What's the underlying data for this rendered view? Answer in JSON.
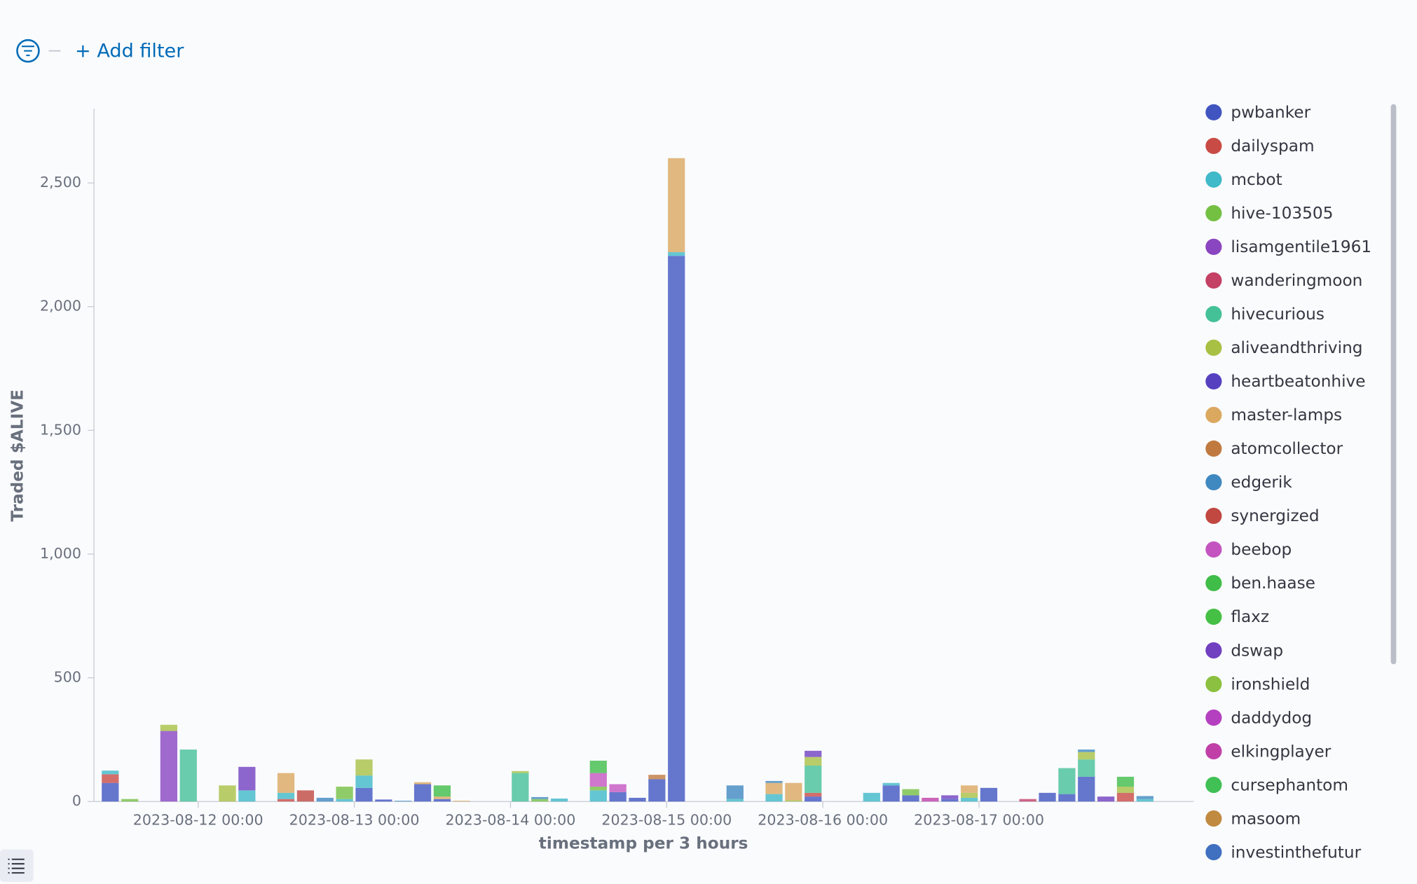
{
  "filter_bar": {
    "add_filter": "+ Add filter"
  },
  "chart_data": {
    "type": "stacked_bar",
    "y_label": "Traded $ALIVE",
    "x_label": "timestamp per 3 hours",
    "x": [
      "2023-08-11 09:00",
      "2023-08-11 12:00",
      "2023-08-11 18:00",
      "2023-08-11 21:00",
      "2023-08-12 03:00",
      "2023-08-12 06:00",
      "2023-08-12 12:00",
      "2023-08-12 15:00",
      "2023-08-12 18:00",
      "2023-08-12 21:00",
      "2023-08-13 00:00",
      "2023-08-13 03:00",
      "2023-08-13 06:00",
      "2023-08-13 09:00",
      "2023-08-13 12:00",
      "2023-08-13 15:00",
      "2023-08-14 00:00",
      "2023-08-14 03:00",
      "2023-08-14 06:00",
      "2023-08-14 12:00",
      "2023-08-14 15:00",
      "2023-08-14 18:00",
      "2023-08-14 21:00",
      "2023-08-15 00:00",
      "2023-08-15 09:00",
      "2023-08-15 15:00",
      "2023-08-15 18:00",
      "2023-08-15 21:00",
      "2023-08-16 06:00",
      "2023-08-16 09:00",
      "2023-08-16 12:00",
      "2023-08-16 15:00",
      "2023-08-16 18:00",
      "2023-08-16 21:00",
      "2023-08-17 00:00",
      "2023-08-17 06:00",
      "2023-08-17 09:00",
      "2023-08-17 12:00",
      "2023-08-17 15:00",
      "2023-08-17 18:00",
      "2023-08-17 21:00",
      "2023-08-18 00:00"
    ],
    "xlim": [
      "2023-08-11 08:00",
      "2023-08-18 09:00"
    ],
    "xticks": [
      "2023-08-12 00:00",
      "2023-08-13 00:00",
      "2023-08-14 00:00",
      "2023-08-15 00:00",
      "2023-08-16 00:00",
      "2023-08-17 00:00"
    ],
    "ylim": [
      0,
      2800
    ],
    "yticks": [
      0,
      500,
      {
        "value": 1000,
        "label": "1,000"
      },
      {
        "value": 1500,
        "label": "1,500"
      },
      {
        "value": 2000,
        "label": "2,000"
      },
      {
        "value": 2500,
        "label": "2,500"
      }
    ],
    "grid": false,
    "legend": "right",
    "series": [
      {
        "name": "pwbanker",
        "color": "#4055c0",
        "values": [
          75,
          0,
          0,
          0,
          0,
          0,
          0,
          0,
          0,
          0,
          55,
          8,
          0,
          70,
          10,
          0,
          0,
          0,
          0,
          0,
          38,
          15,
          90,
          2205,
          0,
          0,
          0,
          20,
          0,
          65,
          25,
          0,
          10,
          0,
          55,
          0,
          35,
          30,
          100,
          0,
          0,
          0
        ]
      },
      {
        "name": "dailyspam",
        "color": "#c94b45",
        "values": [
          35,
          0,
          0,
          0,
          0,
          0,
          10,
          0,
          0,
          0,
          0,
          0,
          0,
          0,
          0,
          0,
          0,
          0,
          0,
          0,
          0,
          0,
          0,
          0,
          0,
          0,
          0,
          15,
          0,
          0,
          0,
          0,
          0,
          0,
          0,
          0,
          0,
          0,
          0,
          0,
          35,
          0
        ]
      },
      {
        "name": "mcbot",
        "color": "#40b9c8",
        "values": [
          15,
          0,
          0,
          0,
          0,
          45,
          25,
          0,
          0,
          10,
          50,
          0,
          0,
          0,
          0,
          0,
          0,
          0,
          12,
          45,
          0,
          0,
          0,
          15,
          10,
          30,
          0,
          0,
          35,
          10,
          0,
          0,
          0,
          15,
          0,
          0,
          0,
          0,
          0,
          0,
          0,
          10
        ]
      },
      {
        "name": "hive-103505",
        "color": "#74c043",
        "values": [
          0,
          10,
          0,
          0,
          0,
          0,
          0,
          0,
          0,
          50,
          0,
          0,
          0,
          0,
          0,
          0,
          0,
          10,
          0,
          15,
          0,
          0,
          0,
          0,
          0,
          0,
          0,
          0,
          0,
          0,
          25,
          0,
          0,
          0,
          0,
          0,
          0,
          0,
          0,
          0,
          0,
          0
        ]
      },
      {
        "name": "lisamgentile1961",
        "color": "#8a45c0",
        "values": [
          0,
          0,
          285,
          0,
          0,
          0,
          0,
          0,
          0,
          0,
          0,
          0,
          0,
          0,
          0,
          0,
          0,
          0,
          0,
          0,
          0,
          0,
          0,
          0,
          0,
          0,
          0,
          0,
          0,
          0,
          0,
          0,
          0,
          0,
          0,
          0,
          0,
          0,
          0,
          0,
          0,
          0
        ]
      },
      {
        "name": "wanderingmoon",
        "color": "#c44065",
        "values": [
          0,
          0,
          0,
          0,
          0,
          0,
          0,
          0,
          0,
          0,
          0,
          0,
          0,
          0,
          0,
          0,
          0,
          0,
          0,
          0,
          0,
          0,
          0,
          0,
          0,
          0,
          0,
          0,
          0,
          0,
          0,
          0,
          0,
          0,
          0,
          10,
          0,
          0,
          0,
          0,
          0,
          0
        ]
      },
      {
        "name": "hivecurious",
        "color": "#45c197",
        "values": [
          0,
          0,
          0,
          210,
          0,
          0,
          0,
          0,
          0,
          0,
          0,
          0,
          0,
          0,
          0,
          0,
          115,
          0,
          0,
          0,
          0,
          0,
          0,
          0,
          0,
          0,
          0,
          110,
          0,
          0,
          0,
          0,
          0,
          0,
          0,
          0,
          0,
          105,
          70,
          0,
          0,
          0
        ]
      },
      {
        "name": "aliveandthriving",
        "color": "#a8c043",
        "values": [
          0,
          0,
          25,
          0,
          65,
          0,
          0,
          0,
          0,
          0,
          65,
          0,
          0,
          0,
          0,
          0,
          8,
          0,
          0,
          0,
          0,
          0,
          0,
          0,
          0,
          0,
          5,
          35,
          0,
          0,
          0,
          0,
          0,
          20,
          0,
          0,
          0,
          0,
          30,
          0,
          25,
          0
        ]
      },
      {
        "name": "heartbeatonhive",
        "color": "#5640c0",
        "values": [
          0,
          0,
          0,
          0,
          0,
          0,
          0,
          0,
          0,
          0,
          0,
          0,
          0,
          0,
          0,
          0,
          0,
          0,
          0,
          0,
          0,
          0,
          0,
          0,
          0,
          0,
          0,
          0,
          0,
          0,
          0,
          0,
          0,
          0,
          0,
          0,
          0,
          0,
          0,
          0,
          0,
          0
        ]
      },
      {
        "name": "master-lamps",
        "color": "#dba860",
        "values": [
          0,
          0,
          0,
          0,
          0,
          0,
          80,
          0,
          0,
          0,
          0,
          0,
          0,
          8,
          10,
          3,
          0,
          0,
          0,
          0,
          0,
          0,
          0,
          380,
          0,
          45,
          70,
          0,
          0,
          0,
          0,
          0,
          0,
          30,
          0,
          0,
          0,
          0,
          0,
          0,
          0,
          0
        ]
      },
      {
        "name": "atomcollector",
        "color": "#c07a40",
        "values": [
          0,
          0,
          0,
          0,
          0,
          0,
          0,
          0,
          0,
          0,
          0,
          0,
          0,
          0,
          0,
          0,
          0,
          0,
          0,
          0,
          0,
          0,
          18,
          0,
          0,
          0,
          0,
          0,
          0,
          0,
          0,
          0,
          0,
          0,
          0,
          0,
          0,
          0,
          0,
          0,
          0,
          0
        ]
      },
      {
        "name": "edgerik",
        "color": "#4088c0",
        "values": [
          0,
          0,
          0,
          0,
          0,
          0,
          0,
          0,
          15,
          0,
          0,
          0,
          3,
          0,
          0,
          0,
          0,
          8,
          0,
          0,
          0,
          0,
          0,
          0,
          55,
          8,
          0,
          0,
          0,
          0,
          0,
          0,
          0,
          0,
          0,
          0,
          0,
          0,
          10,
          0,
          0,
          12
        ]
      },
      {
        "name": "synergized",
        "color": "#c04840",
        "values": [
          0,
          0,
          0,
          0,
          0,
          0,
          0,
          45,
          0,
          0,
          0,
          0,
          0,
          0,
          0,
          0,
          0,
          0,
          0,
          0,
          0,
          0,
          0,
          0,
          0,
          0,
          0,
          0,
          0,
          0,
          0,
          0,
          0,
          0,
          0,
          0,
          0,
          0,
          0,
          0,
          0,
          0
        ]
      },
      {
        "name": "beebop",
        "color": "#c455c0",
        "values": [
          0,
          0,
          0,
          0,
          0,
          0,
          0,
          0,
          0,
          0,
          0,
          0,
          0,
          0,
          0,
          0,
          0,
          0,
          0,
          55,
          32,
          0,
          0,
          0,
          0,
          0,
          0,
          0,
          0,
          0,
          0,
          0,
          0,
          0,
          0,
          0,
          0,
          0,
          0,
          0,
          0,
          0
        ]
      },
      {
        "name": "ben.haase",
        "color": "#40bd48",
        "values": [
          0,
          0,
          0,
          0,
          0,
          0,
          0,
          0,
          0,
          0,
          0,
          0,
          0,
          0,
          45,
          0,
          0,
          0,
          0,
          50,
          0,
          0,
          0,
          0,
          0,
          0,
          0,
          0,
          0,
          0,
          0,
          0,
          0,
          0,
          0,
          0,
          0,
          0,
          0,
          0,
          40,
          0
        ]
      },
      {
        "name": "flaxz",
        "color": "#45c045",
        "values": [
          0,
          0,
          0,
          0,
          0,
          0,
          0,
          0,
          0,
          0,
          0,
          0,
          0,
          0,
          0,
          0,
          0,
          0,
          0,
          0,
          0,
          0,
          0,
          0,
          0,
          0,
          0,
          0,
          0,
          0,
          0,
          0,
          0,
          0,
          0,
          0,
          0,
          0,
          0,
          0,
          0,
          0
        ]
      },
      {
        "name": "dswap",
        "color": "#7040c0",
        "values": [
          0,
          0,
          0,
          0,
          0,
          95,
          0,
          0,
          0,
          0,
          0,
          0,
          0,
          0,
          0,
          0,
          0,
          0,
          0,
          0,
          0,
          0,
          0,
          0,
          0,
          0,
          0,
          25,
          0,
          0,
          0,
          0,
          15,
          0,
          0,
          0,
          0,
          0,
          0,
          20,
          0,
          0
        ]
      },
      {
        "name": "ironshield",
        "color": "#8cc040",
        "values": [
          0,
          0,
          0,
          0,
          0,
          0,
          0,
          0,
          0,
          0,
          0,
          0,
          0,
          0,
          0,
          0,
          0,
          0,
          0,
          0,
          0,
          0,
          0,
          0,
          0,
          0,
          0,
          0,
          0,
          0,
          0,
          0,
          0,
          0,
          0,
          0,
          0,
          0,
          0,
          0,
          0,
          0
        ]
      },
      {
        "name": "daddydog",
        "color": "#b440c0",
        "values": [
          0,
          0,
          0,
          0,
          0,
          0,
          0,
          0,
          0,
          0,
          0,
          0,
          0,
          0,
          0,
          0,
          0,
          0,
          0,
          0,
          0,
          0,
          0,
          0,
          0,
          0,
          0,
          0,
          0,
          0,
          0,
          0,
          0,
          0,
          0,
          0,
          0,
          0,
          0,
          0,
          0,
          0
        ]
      },
      {
        "name": "elkingplayer",
        "color": "#c040a8",
        "values": [
          0,
          0,
          0,
          0,
          0,
          0,
          0,
          0,
          0,
          0,
          0,
          0,
          0,
          0,
          0,
          0,
          0,
          0,
          0,
          0,
          0,
          0,
          0,
          0,
          0,
          0,
          0,
          0,
          0,
          0,
          0,
          15,
          0,
          0,
          0,
          0,
          0,
          0,
          0,
          0,
          0,
          0
        ]
      },
      {
        "name": "cursephantom",
        "color": "#40c055",
        "values": [
          0,
          0,
          0,
          0,
          0,
          0,
          0,
          0,
          0,
          0,
          0,
          0,
          0,
          0,
          0,
          0,
          0,
          0,
          0,
          0,
          0,
          0,
          0,
          0,
          0,
          0,
          0,
          0,
          0,
          0,
          0,
          0,
          0,
          0,
          0,
          0,
          0,
          0,
          0,
          0,
          0,
          0
        ]
      },
      {
        "name": "masoom",
        "color": "#c08a40",
        "values": [
          0,
          0,
          0,
          0,
          0,
          0,
          0,
          0,
          0,
          0,
          0,
          0,
          0,
          0,
          0,
          0,
          0,
          0,
          0,
          0,
          0,
          0,
          0,
          0,
          0,
          0,
          0,
          0,
          0,
          0,
          0,
          0,
          0,
          0,
          0,
          0,
          0,
          0,
          0,
          0,
          0,
          0
        ]
      },
      {
        "name": "investinthefutur",
        "color": "#4070c0",
        "values": [
          0,
          0,
          0,
          0,
          0,
          0,
          0,
          0,
          0,
          0,
          0,
          0,
          0,
          0,
          0,
          0,
          0,
          0,
          0,
          0,
          0,
          0,
          0,
          0,
          0,
          0,
          0,
          0,
          0,
          0,
          0,
          0,
          0,
          0,
          0,
          0,
          0,
          0,
          0,
          0,
          0,
          0
        ]
      }
    ]
  }
}
